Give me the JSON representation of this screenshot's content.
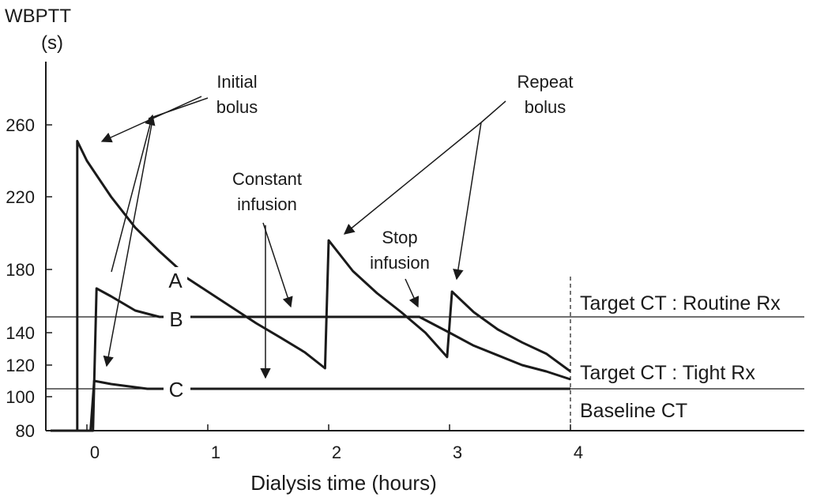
{
  "chart_data": {
    "type": "line",
    "title": "",
    "ylabel_lines": [
      "WBPTT",
      "(s)"
    ],
    "xlabel": "Dialysis time (hours)",
    "xlim": [
      -0.3,
      5.9
    ],
    "ylim": [
      80,
      296
    ],
    "xticks": [
      0,
      1,
      2,
      3,
      4
    ],
    "yticks": [
      80,
      100,
      120,
      140,
      180,
      220,
      260
    ],
    "y_scale_note": "axis is piecewise as drawn",
    "series": [
      {
        "name": "A",
        "points": [
          [
            -0.3,
            80
          ],
          [
            -0.08,
            80
          ],
          [
            -0.08,
            251
          ],
          [
            0.0,
            240
          ],
          [
            0.2,
            220
          ],
          [
            0.4,
            203
          ],
          [
            0.6,
            190
          ],
          [
            0.78,
            179
          ],
          [
            0.8,
            176
          ],
          [
            1.0,
            166
          ],
          [
            1.2,
            156
          ],
          [
            1.4,
            146
          ],
          [
            1.6,
            137
          ],
          [
            1.8,
            128
          ],
          [
            1.97,
            118
          ],
          [
            2.0,
            196
          ],
          [
            2.2,
            179
          ],
          [
            2.4,
            165
          ],
          [
            2.6,
            153
          ],
          [
            2.8,
            140
          ],
          [
            2.98,
            125
          ],
          [
            3.02,
            166
          ],
          [
            3.2,
            153
          ],
          [
            3.4,
            142
          ],
          [
            3.6,
            134
          ],
          [
            3.8,
            127
          ],
          [
            4.0,
            116
          ]
        ]
      },
      {
        "name": "B",
        "points": [
          [
            -0.3,
            80
          ],
          [
            0.05,
            80
          ],
          [
            0.08,
            168
          ],
          [
            0.2,
            163
          ],
          [
            0.4,
            154
          ],
          [
            0.6,
            150
          ],
          [
            2.75,
            150
          ],
          [
            3.0,
            140
          ],
          [
            3.2,
            132
          ],
          [
            3.4,
            126
          ],
          [
            3.6,
            120
          ],
          [
            3.8,
            116
          ],
          [
            4.0,
            111
          ]
        ]
      },
      {
        "name": "C",
        "points": [
          [
            -0.3,
            80
          ],
          [
            0.03,
            80
          ],
          [
            0.06,
            110
          ],
          [
            0.2,
            108
          ],
          [
            0.5,
            105
          ],
          [
            4.0,
            105
          ]
        ]
      }
    ],
    "reference_lines": [
      {
        "label": "Target CT : Routine Rx",
        "y": 150
      },
      {
        "label": "Target CT : Tight Rx",
        "y": 112
      },
      {
        "label": "Baseline CT",
        "y": 105
      }
    ],
    "vertical_marker": {
      "x": 4.0,
      "style": "dashed"
    },
    "annotations": [
      {
        "lines": [
          "Initial",
          "bolus"
        ]
      },
      {
        "lines": [
          "Constant",
          "infusion"
        ]
      },
      {
        "lines": [
          "Repeat",
          "bolus"
        ]
      },
      {
        "lines": [
          "Stop",
          "infusion"
        ]
      }
    ]
  }
}
